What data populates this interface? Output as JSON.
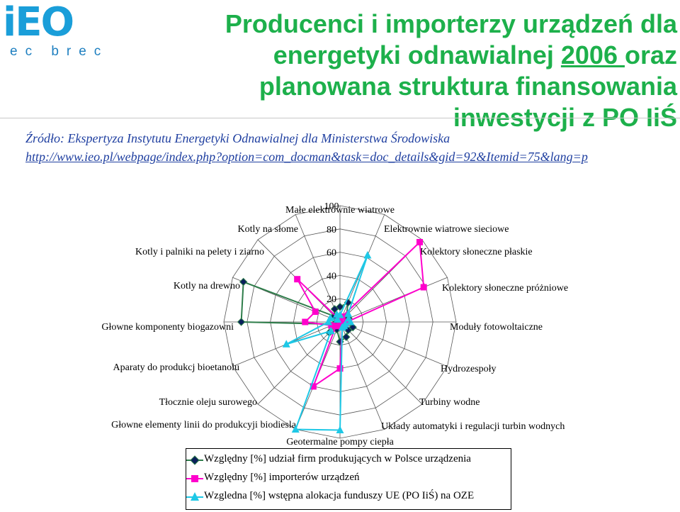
{
  "header": {
    "logo_text": "iEO",
    "logo_sub": "ec brec",
    "title_line1": "Producenci i importerzy urządzeń dla",
    "title_line2_a": "energetyki odnawialnej ",
    "title_line2_year": "2006 ",
    "title_line2_b": "oraz",
    "title_line3": "planowana struktura finansowania",
    "title_line4": "inwestycji z PO IiŚ"
  },
  "source": {
    "text": "Źródło: Ekspertyza Instytutu Energetyki Odnawialnej dla Ministerstwa Środowiska",
    "link_a": "http://www.ieo.pl/webpage/index.php",
    "link_b": "?option=com_docman&task=doc_details&gid=92&Itemid=75&lang=p"
  },
  "colors": {
    "title": "#1db04b",
    "link": "#1f3fa0",
    "series1": "#2e7d4a",
    "series2": "#ff00cc",
    "series3": "#1ec8e6"
  },
  "chart_data": {
    "type": "radar",
    "axes": [
      "Małe elektrownie wiatrowe",
      "Elektrownie wiatrowe sieciowe",
      "Kolektory słoneczne płaskie",
      "Kolektory słoneczne próżniowe",
      "Moduły fotowoltaiczne",
      "Hydrozespoły",
      "Turbiny wodne",
      "Układy automatyki i regulacji turbin wodnych",
      "Geotermalne pompy ciepła",
      "Głowne elementy linii do produkcyji biodiesla",
      "Tłocznie oleju surowego",
      "Aparaty do produkcj bioetanolu",
      "Głowne komponenty biogazowni",
      "Kotly na drewno",
      "Kotly i palniki na pelety i ziarno",
      "Kotly na słome"
    ],
    "range": [
      0,
      100
    ],
    "ticks": [
      0,
      20,
      40,
      60,
      80,
      100
    ],
    "series": [
      {
        "name": "Względny [%] udział firm produkujących w Polsce urządzenia",
        "marker": "diamond",
        "values": [
          13,
          18,
          8,
          8,
          6,
          12,
          10,
          14,
          17,
          7,
          13,
          5,
          85,
          90,
          7,
          12
        ]
      },
      {
        "name": "Względny [%] importerów urządzeń",
        "marker": "square",
        "values": [
          2,
          5,
          97,
          78,
          6,
          5,
          2,
          5,
          40,
          60,
          5,
          8,
          30,
          23,
          52,
          3
        ]
      },
      {
        "name": "Wzgledna [%] wstępna alokacja funduszy UE (PO IiŚ) na OZE",
        "marker": "triangle",
        "values": [
          6,
          62,
          10,
          8,
          9,
          5,
          5,
          5,
          93,
          100,
          11,
          50,
          10,
          9,
          3,
          7
        ]
      }
    ],
    "legend_position": "bottom"
  },
  "legend": [
    "Względny [%] udział firm produkujących w Polsce urządzenia",
    "Względny [%] importerów urządzeń",
    "Wzgledna [%] wstępna alokacja funduszy UE (PO IiŚ) na OZE"
  ]
}
